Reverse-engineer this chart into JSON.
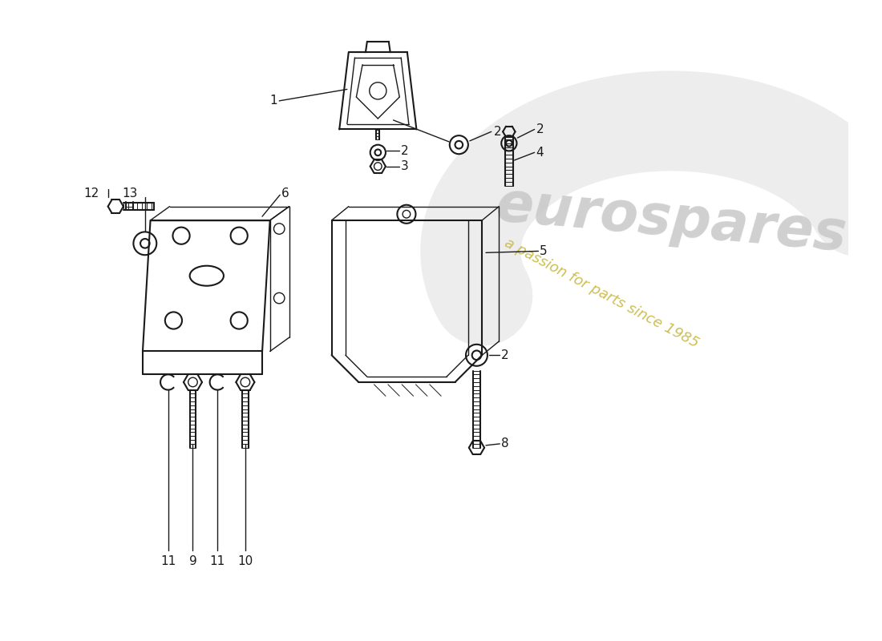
{
  "bg_color": "#ffffff",
  "line_color": "#1a1a1a",
  "watermark_text": "eurospares",
  "watermark_sub": "a passion for parts since 1985",
  "watermark_color": "#d0d0d0",
  "watermark_sub_color": "#c8b840",
  "font_size": 11
}
